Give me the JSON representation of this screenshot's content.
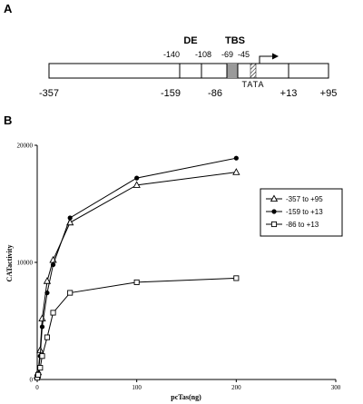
{
  "panel_a": {
    "label": "A",
    "region_de": "DE",
    "region_tbs": "TBS",
    "tata": "TATA",
    "top_positions": [
      {
        "label": "-140",
        "value": -140
      },
      {
        "label": "-108",
        "value": -108
      },
      {
        "label": "-69",
        "value": -69
      },
      {
        "label": "-45",
        "value": -45
      }
    ],
    "bottom_positions": [
      {
        "label": "-357",
        "value": -357
      },
      {
        "label": "-159",
        "value": -159
      },
      {
        "label": "-86",
        "value": -86
      },
      {
        "label": "+13",
        "value": 13
      },
      {
        "label": "+95",
        "value": 95
      }
    ]
  },
  "panel_b": {
    "label": "B"
  },
  "chart_data": {
    "type": "line",
    "title": "",
    "xlabel": "pcTas(ng)",
    "ylabel": "CATactivity",
    "xlim": [
      0,
      300
    ],
    "ylim": [
      0,
      20000
    ],
    "xticks": [
      0,
      100,
      200,
      300
    ],
    "yticks": [
      0,
      10000,
      20000
    ],
    "grid": false,
    "legend_position": "right",
    "series": [
      {
        "name": "-357 to +95",
        "marker": "triangle-open",
        "points": [
          [
            0,
            300
          ],
          [
            1,
            600
          ],
          [
            3,
            2500
          ],
          [
            5,
            5200
          ],
          [
            10,
            8400
          ],
          [
            16,
            10200
          ],
          [
            33,
            13400
          ],
          [
            100,
            16600
          ],
          [
            200,
            17700
          ]
        ]
      },
      {
        "name": "-159 to +13",
        "marker": "circle-filled",
        "points": [
          [
            0,
            250
          ],
          [
            1,
            500
          ],
          [
            3,
            2000
          ],
          [
            5,
            4500
          ],
          [
            10,
            7400
          ],
          [
            16,
            9800
          ],
          [
            33,
            13800
          ],
          [
            100,
            17200
          ],
          [
            200,
            18900
          ]
        ]
      },
      {
        "name": "-86 to +13",
        "marker": "square-open",
        "points": [
          [
            0,
            150
          ],
          [
            1,
            400
          ],
          [
            3,
            1000
          ],
          [
            5,
            2000
          ],
          [
            10,
            3600
          ],
          [
            16,
            5700
          ],
          [
            33,
            7400
          ],
          [
            100,
            8300
          ],
          [
            200,
            8650
          ]
        ]
      }
    ]
  }
}
